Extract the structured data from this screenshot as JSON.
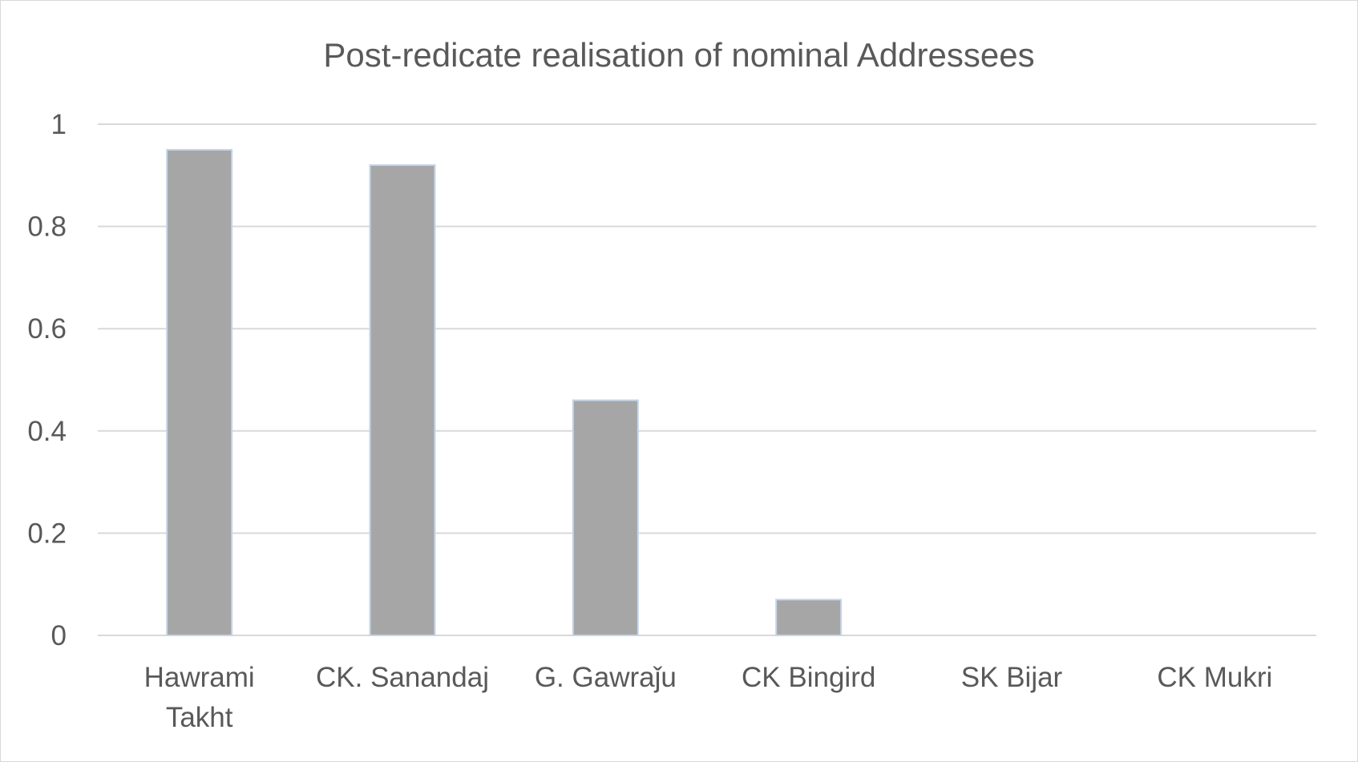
{
  "chart_data": {
    "type": "bar",
    "title": "Post-redicate realisation of nominal Addressees",
    "xlabel": "",
    "ylabel": "",
    "categories": [
      "Hawrami Takht",
      "CK. Sanandaj",
      "G. Gawraǰu",
      "CK Bingird",
      "SK Bijar",
      "CK Mukri"
    ],
    "category_lines": [
      [
        "Hawrami",
        "Takht"
      ],
      [
        "CK. Sanandaj"
      ],
      [
        "G. Gawraǰu"
      ],
      [
        "CK Bingird"
      ],
      [
        "SK Bijar"
      ],
      [
        "CK Mukri"
      ]
    ],
    "values": [
      0.95,
      0.92,
      0.46,
      0.07,
      0,
      0
    ],
    "ylim": [
      0,
      1
    ],
    "yticks": [
      0,
      0.2,
      0.4,
      0.6,
      0.8,
      1
    ],
    "ytick_labels": [
      "0",
      "0.2",
      "0.4",
      "0.6",
      "0.8",
      "1"
    ],
    "grid": true,
    "legend": "none",
    "colors": {
      "bar_fill": "#a6a6a6",
      "bar_stroke": "#c5d5ea",
      "grid": "#d9d9d9",
      "text": "#595959",
      "border": "#d9d9d9"
    }
  }
}
